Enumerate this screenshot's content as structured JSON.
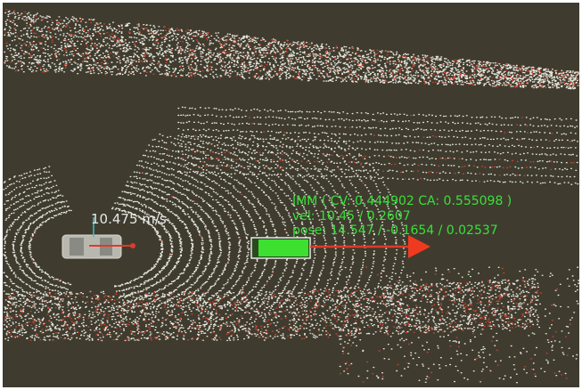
{
  "overlay": {
    "ego_speed": "10.475 m/s",
    "imm": "IMM ( CV: 0.444902 CA: 0.555098 )",
    "vel": "vel: 10.45 / 0.2607",
    "pose": "pose: 14.547 / -0.1654 / 0.02537"
  }
}
